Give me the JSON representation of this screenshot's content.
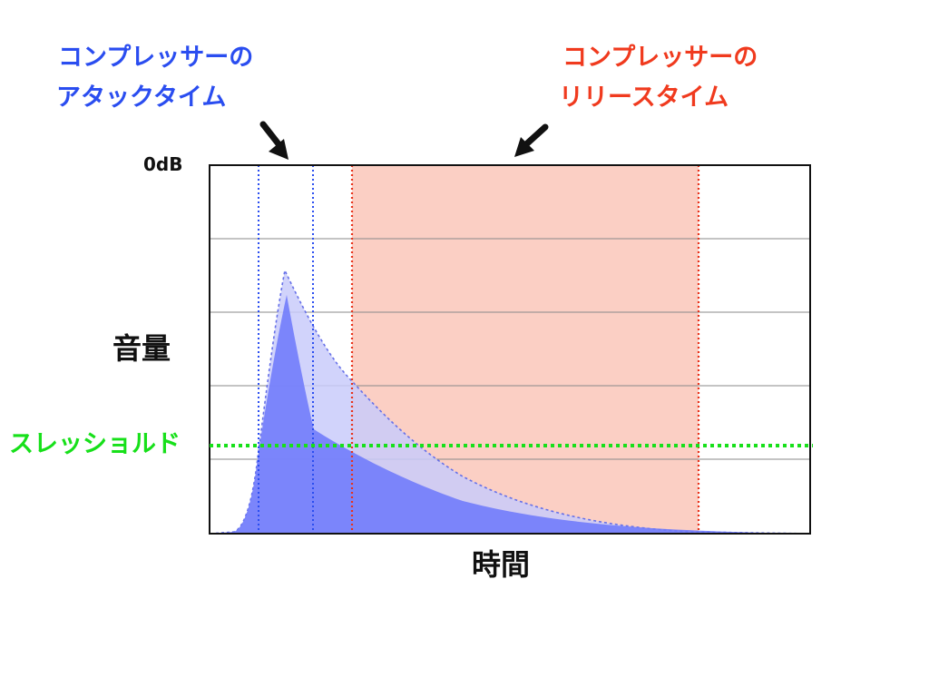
{
  "labels": {
    "attack_line1": "コンプレッサーの",
    "attack_line2": "アタックタイム",
    "release_line1": "コンプレッサーの",
    "release_line2": "リリースタイム",
    "zero_db": "0dB",
    "volume": "音量",
    "threshold": "スレッショルド",
    "time": "時間"
  },
  "colors": {
    "attack": "#2a4df0",
    "release": "#f03a1e",
    "threshold": "#17e01a",
    "release_region": "#fbcfc4",
    "original_envelope": "#c9cbfa",
    "compressed_envelope": "#7c86fb"
  },
  "icons": {
    "attack_arrow": "arrow-down-right-icon",
    "release_arrow": "arrow-down-left-icon"
  }
}
